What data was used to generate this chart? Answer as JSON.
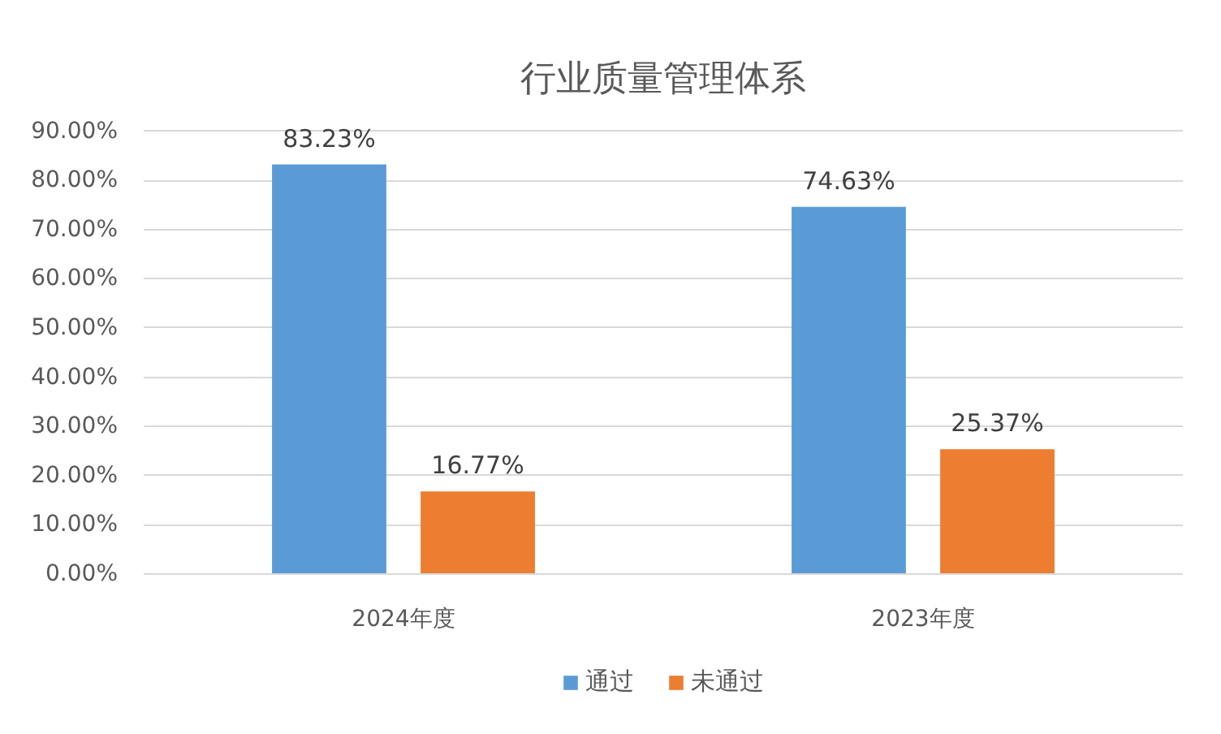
{
  "chart_data": {
    "type": "bar",
    "title": "行业质量管理体系",
    "categories": [
      "2024年度",
      "2023年度"
    ],
    "series": [
      {
        "name": "通过",
        "color": "#5b9bd5",
        "values": [
          83.23,
          74.63
        ],
        "value_labels": [
          "83.23%",
          "74.63%"
        ]
      },
      {
        "name": "未通过",
        "color": "#ed7d31",
        "values": [
          16.77,
          25.37
        ],
        "value_labels": [
          "16.77%",
          "25.37%"
        ]
      }
    ],
    "ylim": [
      0,
      90
    ],
    "yticks": [
      {
        "value": 0,
        "label": "0.00%"
      },
      {
        "value": 10,
        "label": "10.00%"
      },
      {
        "value": 20,
        "label": "20.00%"
      },
      {
        "value": 30,
        "label": "30.00%"
      },
      {
        "value": 40,
        "label": "40.00%"
      },
      {
        "value": 50,
        "label": "50.00%"
      },
      {
        "value": 60,
        "label": "60.00%"
      },
      {
        "value": 70,
        "label": "70.00%"
      },
      {
        "value": 80,
        "label": "80.00%"
      },
      {
        "value": 90,
        "label": "90.00%"
      }
    ],
    "grid": "y",
    "legend": "bottom"
  }
}
